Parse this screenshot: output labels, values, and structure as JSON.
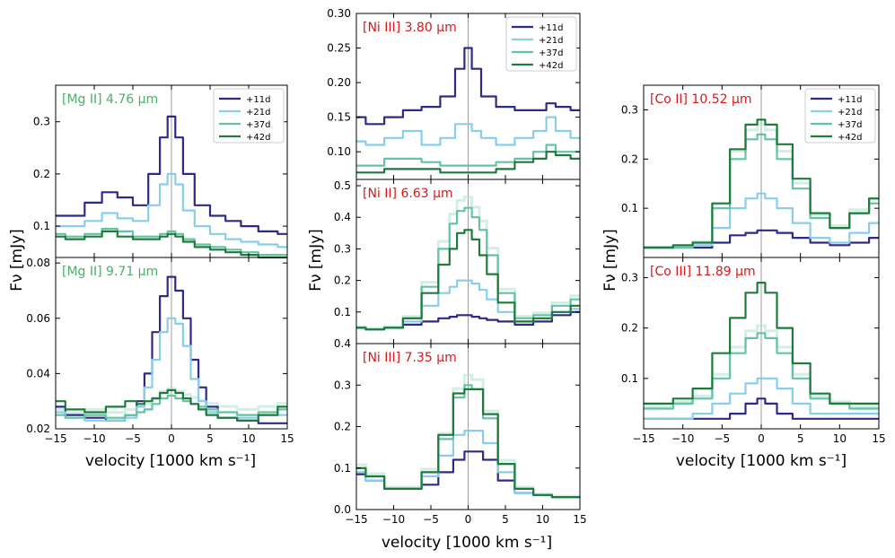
{
  "figure": {
    "xlabel": "velocity [1000 km s⁻¹]",
    "ylabel": "Fν [mJy]"
  },
  "legend": {
    "entries": [
      "+11d",
      "+21d",
      "+37d",
      "+42d"
    ]
  },
  "colors": {
    "+11d": "#2e2a85",
    "+21d": "#87ceeb",
    "+37d": "#66c2a5",
    "+42d": "#1e7b3c",
    "mg_label": "#4caf6a",
    "ni_co_label": "#d7191c",
    "faint": "#b7e3d6"
  },
  "chart_data": [
    {
      "id": "mg2_476",
      "type": "line",
      "label": "[Mg II] 4.76 μm",
      "xlim": [
        -15,
        15
      ],
      "ylim": [
        0.04,
        0.37
      ],
      "yticks": [
        0.1,
        0.2,
        0.3
      ],
      "ytick_labels": [
        "0.1",
        "0.2",
        "0.3"
      ],
      "x": [
        -15,
        -12.5,
        -10,
        -8,
        -6,
        -4,
        -2,
        -1,
        0,
        1,
        2,
        4,
        6,
        8,
        10,
        12.5,
        15
      ],
      "series": [
        {
          "name": "+11d",
          "values": [
            0.12,
            0.12,
            0.145,
            0.165,
            0.155,
            0.14,
            0.2,
            0.27,
            0.31,
            0.27,
            0.2,
            0.14,
            0.12,
            0.11,
            0.1,
            0.09,
            0.085
          ]
        },
        {
          "name": "+21d",
          "values": [
            0.1,
            0.1,
            0.11,
            0.125,
            0.115,
            0.11,
            0.14,
            0.18,
            0.2,
            0.18,
            0.13,
            0.1,
            0.085,
            0.075,
            0.07,
            0.065,
            0.06
          ]
        },
        {
          "name": "+37d",
          "values": [
            0.085,
            0.08,
            0.085,
            0.095,
            0.09,
            0.08,
            0.08,
            0.085,
            0.09,
            0.085,
            0.075,
            0.065,
            0.06,
            0.055,
            0.05,
            0.045,
            0.045
          ]
        },
        {
          "name": "+42d",
          "values": [
            0.08,
            0.075,
            0.08,
            0.09,
            0.08,
            0.075,
            0.075,
            0.08,
            0.085,
            0.08,
            0.07,
            0.06,
            0.055,
            0.05,
            0.045,
            0.04,
            0.04
          ]
        }
      ]
    },
    {
      "id": "mg2_971",
      "type": "line",
      "label": "[Mg II] 9.71 μm",
      "xlim": [
        -15,
        15
      ],
      "ylim": [
        0.02,
        0.082
      ],
      "yticks": [
        0.02,
        0.04,
        0.06,
        0.08
      ],
      "ytick_labels": [
        "0.02",
        "0.04",
        "0.06",
        "0.08"
      ],
      "x": [
        -15,
        -12.5,
        -10,
        -7,
        -5,
        -4,
        -3,
        -2,
        -1,
        0,
        1,
        2,
        3,
        4,
        5,
        7,
        10,
        12.5,
        15
      ],
      "series": [
        {
          "name": "+11d",
          "values": [
            0.028,
            0.025,
            0.024,
            0.023,
            0.025,
            0.03,
            0.04,
            0.055,
            0.068,
            0.075,
            0.07,
            0.06,
            0.045,
            0.035,
            0.028,
            0.024,
            0.023,
            0.022,
            0.022
          ]
        },
        {
          "name": "+21d",
          "values": [
            0.026,
            0.024,
            0.023,
            0.023,
            0.024,
            0.028,
            0.035,
            0.045,
            0.055,
            0.06,
            0.058,
            0.05,
            0.038,
            0.03,
            0.026,
            0.024,
            0.024,
            0.025,
            0.025
          ]
        },
        {
          "name": "+37d",
          "values": [
            0.025,
            0.024,
            0.025,
            0.024,
            0.025,
            0.026,
            0.027,
            0.029,
            0.031,
            0.032,
            0.031,
            0.03,
            0.029,
            0.028,
            0.027,
            0.026,
            0.025,
            0.026,
            0.027
          ]
        },
        {
          "name": "+42d",
          "values": [
            0.03,
            0.027,
            0.026,
            0.028,
            0.03,
            0.029,
            0.03,
            0.031,
            0.033,
            0.034,
            0.033,
            0.031,
            0.029,
            0.027,
            0.025,
            0.024,
            0.023,
            0.025,
            0.028
          ]
        }
      ]
    },
    {
      "id": "ni3_380",
      "type": "line",
      "label": "[Ni III] 3.80 μm",
      "xlim": [
        -15,
        15
      ],
      "ylim": [
        0.06,
        0.3
      ],
      "yticks": [
        0.1,
        0.15,
        0.2,
        0.25,
        0.3
      ],
      "ytick_labels": [
        "0.10",
        "0.15",
        "0.20",
        "0.25",
        "0.30"
      ],
      "x": [
        -15,
        -12.5,
        -10,
        -7.5,
        -5,
        -2.5,
        -1,
        0,
        1,
        2.5,
        5,
        7.5,
        10,
        11,
        12.5,
        15
      ],
      "series": [
        {
          "name": "+11d",
          "values": [
            0.15,
            0.14,
            0.15,
            0.16,
            0.165,
            0.18,
            0.22,
            0.25,
            0.22,
            0.18,
            0.165,
            0.16,
            0.16,
            0.17,
            0.165,
            0.16
          ]
        },
        {
          "name": "+21d",
          "values": [
            0.115,
            0.11,
            0.12,
            0.13,
            0.11,
            0.12,
            0.14,
            0.14,
            0.13,
            0.12,
            0.11,
            0.12,
            0.13,
            0.15,
            0.13,
            0.12
          ]
        },
        {
          "name": "+37d",
          "values": [
            0.08,
            0.08,
            0.09,
            0.09,
            0.085,
            0.08,
            0.08,
            0.08,
            0.08,
            0.08,
            0.085,
            0.09,
            0.1,
            0.11,
            0.1,
            0.1
          ]
        },
        {
          "name": "+42d",
          "values": [
            0.07,
            0.07,
            0.075,
            0.075,
            0.075,
            0.07,
            0.07,
            0.07,
            0.07,
            0.07,
            0.075,
            0.085,
            0.09,
            0.1,
            0.095,
            0.09
          ]
        }
      ]
    },
    {
      "id": "ni2_663",
      "type": "line",
      "label": "[Ni II] 6.63 μm",
      "xlim": [
        -15,
        15
      ],
      "ylim": [
        0.0,
        0.52
      ],
      "yticks": [
        0.1,
        0.2,
        0.3,
        0.4,
        0.5
      ],
      "ytick_labels": [
        "0.1",
        "0.2",
        "0.3",
        "0.4",
        "0.5"
      ],
      "x": [
        -15,
        -12.5,
        -10,
        -7.5,
        -5,
        -3,
        -2,
        -1,
        0,
        1,
        2,
        3,
        5,
        7.5,
        10,
        12.5,
        15
      ],
      "series": [
        {
          "name": "+11d",
          "values": [
            0.05,
            0.045,
            0.05,
            0.06,
            0.07,
            0.08,
            0.085,
            0.09,
            0.09,
            0.085,
            0.08,
            0.075,
            0.07,
            0.06,
            0.07,
            0.09,
            0.1
          ]
        },
        {
          "name": "+21d",
          "values": [
            0.05,
            0.045,
            0.05,
            0.07,
            0.12,
            0.16,
            0.18,
            0.2,
            0.2,
            0.19,
            0.17,
            0.14,
            0.1,
            0.07,
            0.08,
            0.1,
            0.11
          ]
        },
        {
          "name": "+37d",
          "values": [
            0.05,
            0.045,
            0.05,
            0.08,
            0.18,
            0.3,
            0.38,
            0.42,
            0.43,
            0.4,
            0.36,
            0.28,
            0.16,
            0.08,
            0.09,
            0.12,
            0.14
          ]
        },
        {
          "name": "+42d",
          "values": [
            0.05,
            0.045,
            0.05,
            0.08,
            0.16,
            0.25,
            0.3,
            0.35,
            0.36,
            0.33,
            0.28,
            0.22,
            0.13,
            0.07,
            0.08,
            0.1,
            0.12
          ]
        }
      ]
    },
    {
      "id": "ni3_735",
      "type": "line",
      "label": "[Ni III] 7.35 μm",
      "xlim": [
        -15,
        15
      ],
      "ylim": [
        0.0,
        0.4
      ],
      "yticks": [
        0.0,
        0.1,
        0.2,
        0.3,
        0.4
      ],
      "ytick_labels": [
        "0.0",
        "0.1",
        "0.2",
        "0.3",
        "0.4"
      ],
      "x": [
        -15,
        -12.5,
        -10,
        -7.5,
        -5,
        -3,
        -1,
        0,
        1,
        3,
        5,
        7.5,
        10,
        12.5,
        15
      ],
      "series": [
        {
          "name": "+11d",
          "values": [
            0.085,
            0.07,
            0.05,
            0.05,
            0.06,
            0.09,
            0.12,
            0.14,
            0.14,
            0.12,
            0.07,
            0.04,
            0.035,
            0.03,
            0.03
          ]
        },
        {
          "name": "+21d",
          "values": [
            0.09,
            0.07,
            0.05,
            0.05,
            0.08,
            0.13,
            0.18,
            0.19,
            0.19,
            0.16,
            0.09,
            0.04,
            0.035,
            0.03,
            0.03
          ]
        },
        {
          "name": "+37d",
          "values": [
            0.1,
            0.08,
            0.05,
            0.05,
            0.09,
            0.17,
            0.27,
            0.3,
            0.29,
            0.22,
            0.11,
            0.05,
            0.035,
            0.03,
            0.03
          ]
        },
        {
          "name": "+42d",
          "values": [
            0.1,
            0.08,
            0.05,
            0.05,
            0.09,
            0.18,
            0.28,
            0.29,
            0.29,
            0.23,
            0.11,
            0.05,
            0.035,
            0.03,
            0.03
          ]
        }
      ]
    },
    {
      "id": "co2_1052",
      "type": "line",
      "label": "[Co II] 10.52 μm",
      "xlim": [
        -15,
        15
      ],
      "ylim": [
        0.0,
        0.35
      ],
      "yticks": [
        0.1,
        0.2,
        0.3
      ],
      "ytick_labels": [
        "0.1",
        "0.2",
        "0.3"
      ],
      "x": [
        -15,
        -12.5,
        -10,
        -7.5,
        -5,
        -3,
        -1,
        0,
        1,
        3,
        5,
        7.5,
        10,
        12.5,
        15
      ],
      "series": [
        {
          "name": "+11d",
          "values": [
            0.02,
            0.02,
            0.02,
            0.02,
            0.03,
            0.045,
            0.05,
            0.055,
            0.055,
            0.05,
            0.04,
            0.03,
            0.025,
            0.03,
            0.04
          ]
        },
        {
          "name": "+21d",
          "values": [
            0.02,
            0.02,
            0.02,
            0.025,
            0.06,
            0.1,
            0.12,
            0.13,
            0.12,
            0.1,
            0.07,
            0.04,
            0.03,
            0.05,
            0.07
          ]
        },
        {
          "name": "+37d",
          "values": [
            0.02,
            0.02,
            0.02,
            0.03,
            0.1,
            0.2,
            0.24,
            0.25,
            0.24,
            0.2,
            0.14,
            0.08,
            0.06,
            0.09,
            0.11
          ]
        },
        {
          "name": "+42d",
          "values": [
            0.02,
            0.02,
            0.025,
            0.03,
            0.11,
            0.22,
            0.27,
            0.28,
            0.27,
            0.23,
            0.16,
            0.09,
            0.06,
            0.09,
            0.12
          ]
        }
      ]
    },
    {
      "id": "co3_1189",
      "type": "line",
      "label": "[Co III] 11.89 μm",
      "xlim": [
        -15,
        15
      ],
      "ylim": [
        0.0,
        0.34
      ],
      "yticks": [
        0.1,
        0.2,
        0.3
      ],
      "ytick_labels": [
        "0.1",
        "0.2",
        "0.3"
      ],
      "x": [
        -15,
        -12.5,
        -10,
        -7.5,
        -5,
        -3,
        -1,
        0,
        1,
        3,
        5,
        7.5,
        10,
        12.5,
        15
      ],
      "series": [
        {
          "name": "+11d",
          "values": [
            0.02,
            0.02,
            0.02,
            0.02,
            0.02,
            0.03,
            0.05,
            0.06,
            0.05,
            0.03,
            0.02,
            0.02,
            0.02,
            0.02,
            0.02
          ]
        },
        {
          "name": "+21d",
          "values": [
            0.02,
            0.02,
            0.02,
            0.03,
            0.05,
            0.07,
            0.09,
            0.1,
            0.1,
            0.08,
            0.05,
            0.03,
            0.03,
            0.03,
            0.03
          ]
        },
        {
          "name": "+37d",
          "values": [
            0.04,
            0.04,
            0.05,
            0.06,
            0.1,
            0.15,
            0.18,
            0.19,
            0.18,
            0.15,
            0.1,
            0.06,
            0.05,
            0.04,
            0.04
          ]
        },
        {
          "name": "+42d",
          "values": [
            0.05,
            0.05,
            0.06,
            0.08,
            0.15,
            0.22,
            0.27,
            0.29,
            0.27,
            0.2,
            0.13,
            0.07,
            0.05,
            0.05,
            0.05
          ]
        }
      ]
    }
  ],
  "xaxis": {
    "ticks": [
      -15,
      -10,
      -5,
      0,
      5,
      10,
      15
    ],
    "tick_labels": [
      "−15",
      "−10",
      "−5",
      "0",
      "5",
      "10",
      "15"
    ]
  }
}
